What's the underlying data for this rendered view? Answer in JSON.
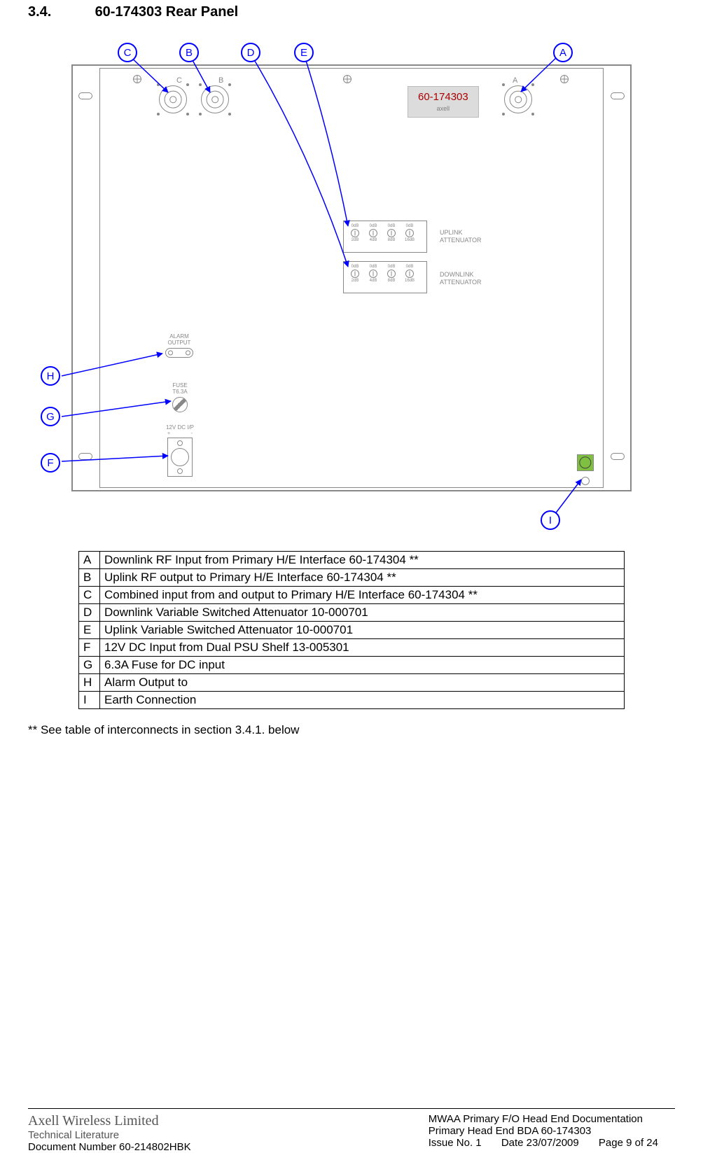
{
  "heading": {
    "number": "3.4.",
    "title": "60-174303 Rear Panel"
  },
  "model_label": {
    "part": "60-174303",
    "brand": "axell"
  },
  "connectors": {
    "C": "C",
    "B": "B",
    "A": "A"
  },
  "attenuators": {
    "uplink_label": "UPLINK\nATTENUATOR",
    "downlink_label": "DOWNLINK\nATTENUATOR",
    "top_labels": [
      "0dB",
      "0dB",
      "0dB",
      "0dB"
    ],
    "bottom_labels": [
      "2dB",
      "4dB",
      "8dB",
      "16dB"
    ]
  },
  "blocks": {
    "alarm": "ALARM\nOUTPUT",
    "fuse": "FUSE\nT6.3A",
    "dc": "12V DC I/P",
    "dc_plus": "+",
    "dc_minus": "-"
  },
  "callouts": {
    "A": "A",
    "B": "B",
    "C": "C",
    "D": "D",
    "E": "E",
    "F": "F",
    "G": "G",
    "H": "H",
    "I": "I"
  },
  "legend": [
    {
      "k": "A",
      "v": "Downlink RF Input from Primary H/E Interface 60-174304 **"
    },
    {
      "k": "B",
      "v": "Uplink RF output to Primary H/E Interface 60-174304 **"
    },
    {
      "k": "C",
      "v": "Combined input from and output to Primary H/E Interface 60-174304 **"
    },
    {
      "k": "D",
      "v": "Downlink Variable Switched Attenuator 10-000701"
    },
    {
      "k": "E",
      "v": "Uplink Variable Switched Attenuator 10-000701"
    },
    {
      "k": "F",
      "v": "12V DC Input from Dual PSU Shelf 13-005301"
    },
    {
      "k": "G",
      "v": "6.3A Fuse for DC input"
    },
    {
      "k": "H",
      "v": "Alarm Output to"
    },
    {
      "k": "I",
      "v": "Earth Connection"
    }
  ],
  "note": "** See table of interconnects in section 3.4.1. below",
  "footer": {
    "brand": "Axell Wireless Limited",
    "sub": "Technical Literature",
    "docnum": "Document Number 60-214802HBK",
    "title1": "MWAA Primary F/O Head End Documentation",
    "title2": "Primary Head End BDA 60-174303",
    "issue": "Issue No. 1",
    "date": "Date 23/07/2009",
    "page": "Page 9 of 24"
  },
  "colors": {
    "callout": "#0000ff",
    "panel_line": "#888888",
    "earth": "#7fc040",
    "model_text": "#aa0000"
  }
}
